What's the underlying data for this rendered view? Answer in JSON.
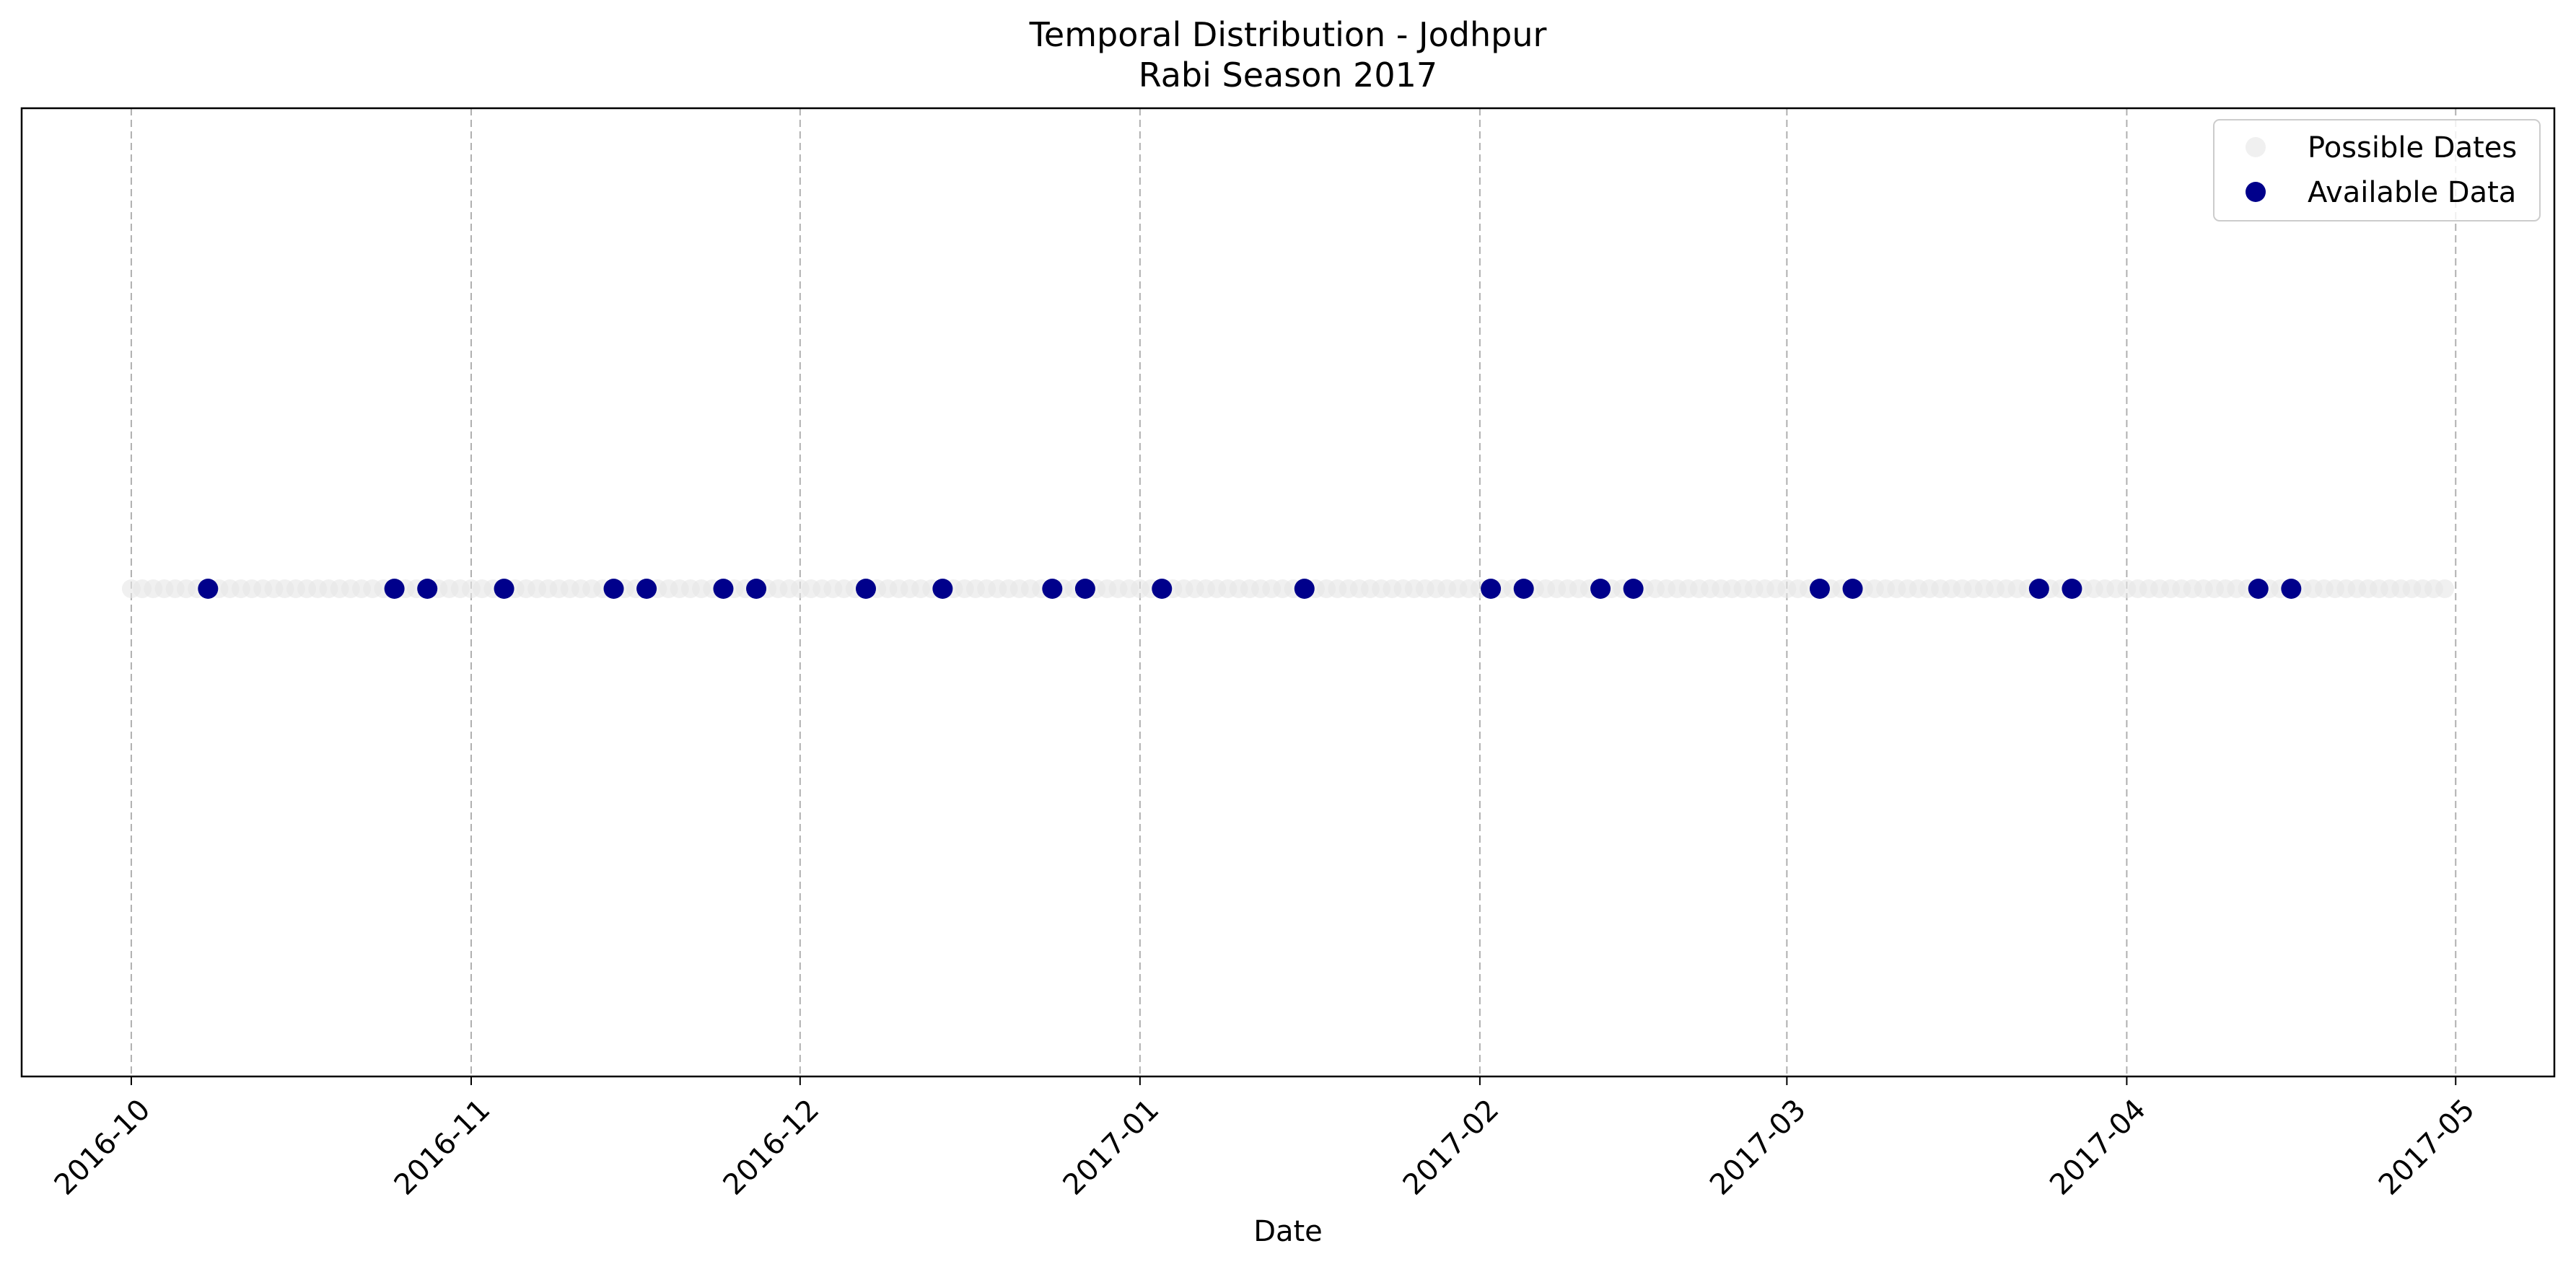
{
  "chart_data": {
    "type": "scatter",
    "title": "Temporal Distribution - Jodhpur",
    "subtitle": "Rabi Season 2017",
    "xlabel": "Date",
    "ylabel": "",
    "x_axis_type": "date",
    "xlim": [
      "2016-09-21",
      "2017-05-10"
    ],
    "x_ticks": [
      "2016-10-01",
      "2016-11-01",
      "2016-12-01",
      "2017-01-01",
      "2017-02-01",
      "2017-03-01",
      "2017-04-01",
      "2017-05-01"
    ],
    "x_tick_labels": [
      "2016-10",
      "2016-11",
      "2016-12",
      "2017-01",
      "2017-02",
      "2017-03",
      "2017-04",
      "2017-05"
    ],
    "y_ticks_visible": false,
    "grid": "x-axis, dashed",
    "legend_position": "top-right",
    "series": [
      {
        "name": "Possible Dates",
        "color": "#e6e6e6",
        "marker": "circle",
        "x_start": "2016-10-01",
        "x_end": "2017-04-30",
        "step_days": 1,
        "y": 0
      },
      {
        "name": "Available Data",
        "color": "#00008b",
        "marker": "circle",
        "x": [
          "2016-10-08",
          "2016-10-25",
          "2016-10-28",
          "2016-11-04",
          "2016-11-14",
          "2016-11-17",
          "2016-11-24",
          "2016-11-27",
          "2016-12-07",
          "2016-12-14",
          "2016-12-24",
          "2016-12-27",
          "2017-01-03",
          "2017-01-16",
          "2017-02-02",
          "2017-02-05",
          "2017-02-12",
          "2017-02-15",
          "2017-03-04",
          "2017-03-07",
          "2017-03-24",
          "2017-03-27",
          "2017-04-13",
          "2017-04-16"
        ],
        "y": 0
      }
    ]
  }
}
